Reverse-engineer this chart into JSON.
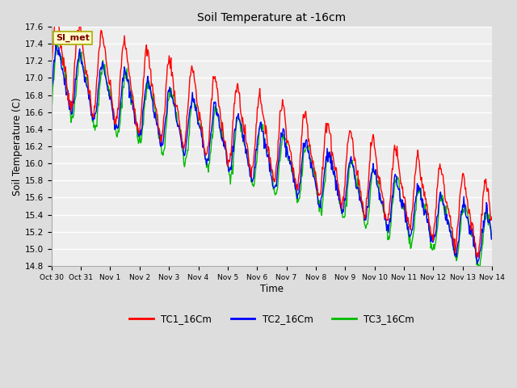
{
  "title": "Soil Temperature at -16cm",
  "xlabel": "Time",
  "ylabel": "Soil Temperature (C)",
  "ylim": [
    14.8,
    17.6
  ],
  "xlim": [
    0,
    15
  ],
  "tick_labels": [
    "Oct 30",
    "Oct 31",
    "Nov 1",
    "Nov 2",
    "Nov 3",
    "Nov 4",
    "Nov 5",
    "Nov 6",
    "Nov 7",
    "Nov 8",
    "Nov 9",
    "Nov 10",
    "Nov 11",
    "Nov 12",
    "Nov 13",
    "Nov 14"
  ],
  "tick_positions": [
    0,
    1,
    2,
    3,
    4,
    5,
    6,
    7,
    8,
    9,
    10,
    11,
    12,
    13,
    14,
    15
  ],
  "yticks": [
    14.8,
    15.0,
    15.2,
    15.4,
    15.6,
    15.8,
    16.0,
    16.2,
    16.4,
    16.6,
    16.8,
    17.0,
    17.2,
    17.4,
    17.6
  ],
  "line_colors": [
    "#ff0000",
    "#0000ff",
    "#00bb00"
  ],
  "line_labels": [
    "TC1_16Cm",
    "TC2_16Cm",
    "TC3_16Cm"
  ],
  "linewidth": 1.0,
  "fig_bg_color": "#dddddd",
  "plot_bg_color": "#eeeeee",
  "grid_color": "#ffffff",
  "annotation_text": "SI_met",
  "annotation_color": "#800000",
  "annotation_bg": "#ffffcc",
  "annotation_edge": "#aaaa00"
}
